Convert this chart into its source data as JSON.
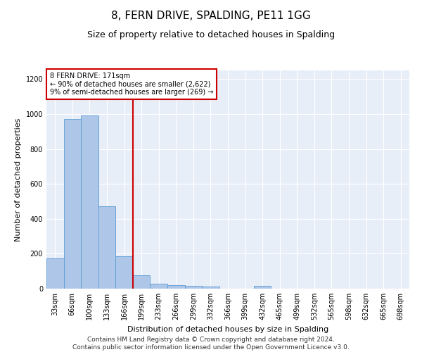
{
  "title": "8, FERN DRIVE, SPALDING, PE11 1GG",
  "subtitle": "Size of property relative to detached houses in Spalding",
  "xlabel": "Distribution of detached houses by size in Spalding",
  "ylabel": "Number of detached properties",
  "categories": [
    "33sqm",
    "66sqm",
    "100sqm",
    "133sqm",
    "166sqm",
    "199sqm",
    "233sqm",
    "266sqm",
    "299sqm",
    "332sqm",
    "366sqm",
    "399sqm",
    "432sqm",
    "465sqm",
    "499sqm",
    "532sqm",
    "565sqm",
    "598sqm",
    "632sqm",
    "665sqm",
    "698sqm"
  ],
  "values": [
    175,
    970,
    990,
    470,
    185,
    75,
    30,
    22,
    18,
    12,
    0,
    0,
    15,
    0,
    0,
    0,
    0,
    0,
    0,
    0,
    0
  ],
  "bar_color": "#aec6e8",
  "bar_edgecolor": "#5b9bd5",
  "annotation_text": "8 FERN DRIVE: 171sqm\n← 90% of detached houses are smaller (2,622)\n9% of semi-detached houses are larger (269) →",
  "annotation_box_color": "#ffffff",
  "annotation_box_edgecolor": "#cc0000",
  "redline_color": "#cc0000",
  "ylim": [
    0,
    1250
  ],
  "yticks": [
    0,
    200,
    400,
    600,
    800,
    1000,
    1200
  ],
  "footer_line1": "Contains HM Land Registry data © Crown copyright and database right 2024.",
  "footer_line2": "Contains public sector information licensed under the Open Government Licence v3.0.",
  "bg_color": "#e8eef8",
  "title_fontsize": 11,
  "subtitle_fontsize": 9,
  "axis_label_fontsize": 8,
  "tick_fontsize": 7,
  "footer_fontsize": 6.5,
  "annotation_fontsize": 7
}
